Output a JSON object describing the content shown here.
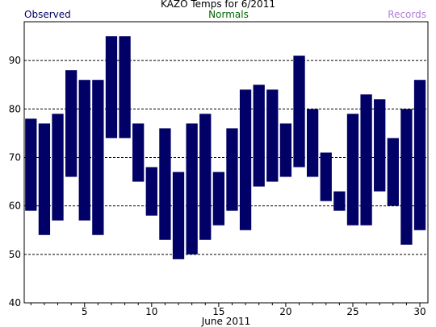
{
  "chart_data": {
    "type": "bar",
    "subtype": "floating-range",
    "title": "KAZO Temps for 6/2011",
    "xlabel": "June 2011",
    "ylabel": "",
    "legend": [
      {
        "name": "Observed",
        "color": "#000066"
      },
      {
        "name": "Normals",
        "color": "#006600"
      },
      {
        "name": "Records",
        "color": "#B07ED8"
      }
    ],
    "ylim": [
      40,
      98
    ],
    "xlim": [
      0.5,
      30.6
    ],
    "yticks": [
      40,
      50,
      60,
      70,
      80,
      90
    ],
    "xticks": [
      5,
      10,
      15,
      20,
      25,
      30
    ],
    "grid": "horizontal-dashed",
    "series": [
      {
        "name": "Observed",
        "color": "#000066",
        "days": [
          1,
          2,
          3,
          4,
          5,
          6,
          7,
          8,
          9,
          10,
          11,
          12,
          13,
          14,
          15,
          16,
          17,
          18,
          19,
          20,
          21,
          22,
          23,
          24,
          25,
          26,
          27,
          28,
          29,
          30
        ],
        "high": [
          78,
          77,
          79,
          88,
          86,
          86,
          95,
          95,
          77,
          68,
          76,
          67,
          77,
          79,
          67,
          76,
          84,
          85,
          84,
          77,
          91,
          80,
          71,
          63,
          79,
          83,
          82,
          74,
          80,
          86
        ],
        "low": [
          59,
          54,
          57,
          66,
          57,
          54,
          74,
          74,
          65,
          58,
          53,
          49,
          50,
          53,
          56,
          59,
          55,
          64,
          65,
          66,
          68,
          66,
          61,
          59,
          56,
          56,
          63,
          60,
          52,
          55
        ]
      }
    ]
  }
}
